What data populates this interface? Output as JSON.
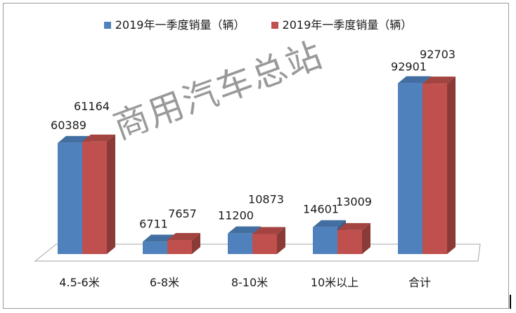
{
  "chart_data": {
    "type": "bar",
    "categories": [
      "4.5-6米",
      "6-8米",
      "8-10米",
      "10米以上",
      "合计"
    ],
    "series": [
      {
        "name": "2019年一季度销量（辆）",
        "color": "#4F81BD",
        "values": [
          60389,
          6711,
          11200,
          14601,
          92901
        ]
      },
      {
        "name": "2019年一季度销量（辆）",
        "color": "#C0504D",
        "values": [
          61164,
          7657,
          10873,
          13009,
          92703
        ]
      }
    ],
    "ylim": [
      0,
      100000
    ],
    "legend_position": "top",
    "grid": false,
    "bar_style": "3d"
  },
  "watermark": "商用汽车总站"
}
